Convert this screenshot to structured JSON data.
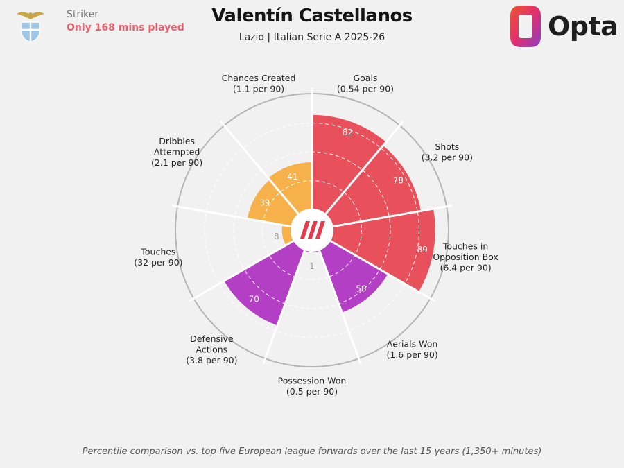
{
  "header": {
    "role": "Striker",
    "warning": "Only 168 mins played",
    "title": "Valentín Castellanos",
    "subtitle": "Lazio | Italian Serie A 2025-26",
    "brand": "Opta"
  },
  "footnote": "Percentile comparison vs. top five European league forwards over the last 15 years (1,350+ minutes)",
  "colors": {
    "attacking": "#e8505b",
    "possession": "#f6b14a",
    "defending": "#b33fc4",
    "background": "#f1f1f1",
    "ring": "#b5b5b5"
  },
  "chart_data": {
    "type": "polar-bar",
    "scale": [
      0,
      100
    ],
    "metrics": [
      {
        "label": [
          "Goals",
          "(0.54 per 90)"
        ],
        "value": 82,
        "group": "attacking"
      },
      {
        "label": [
          "Shots",
          "(3.2 per 90)"
        ],
        "value": 78,
        "group": "attacking"
      },
      {
        "label": [
          "Touches in",
          "Opposition Box",
          "(6.4 per 90)"
        ],
        "value": 89,
        "group": "attacking"
      },
      {
        "label": [
          "Aerials Won",
          "(1.6 per 90)"
        ],
        "value": 58,
        "group": "defending"
      },
      {
        "label": [
          "Possession Won",
          "(0.5 per 90)"
        ],
        "value": 1,
        "group": "defending"
      },
      {
        "label": [
          "Defensive",
          "Actions",
          "(3.8 per 90)"
        ],
        "value": 70,
        "group": "defending"
      },
      {
        "label": [
          "Touches",
          "(32 per 90)"
        ],
        "value": 8,
        "group": "possession"
      },
      {
        "label": [
          "Dribbles",
          "Attempted",
          "(2.1 per 90)"
        ],
        "value": 39,
        "group": "possession"
      },
      {
        "label": [
          "Chances Created",
          "(1.1 per 90)"
        ],
        "value": 41,
        "group": "possession"
      }
    ]
  }
}
